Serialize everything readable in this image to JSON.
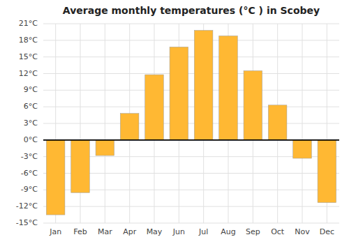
{
  "chart_data": {
    "type": "bar",
    "title": "Average monthly temperatures (°C ) in Scobey",
    "categories": [
      "Jan",
      "Feb",
      "Mar",
      "Apr",
      "May",
      "Jun",
      "Jul",
      "Aug",
      "Sep",
      "Oct",
      "Nov",
      "Dec"
    ],
    "values": [
      -13.5,
      -9.5,
      -2.8,
      4.8,
      11.8,
      16.8,
      19.8,
      18.8,
      12.5,
      6.3,
      -3.3,
      -11.3
    ],
    "color": "#FFB833",
    "ylim": [
      -15,
      21
    ],
    "yticks": [
      {
        "value": -15,
        "label": "-15°C"
      },
      {
        "value": -12,
        "label": "-12°C"
      },
      {
        "value": -9,
        "label": "-9°C"
      },
      {
        "value": -6,
        "label": "-6°C"
      },
      {
        "value": -3,
        "label": "-3°C"
      },
      {
        "value": 0,
        "label": "0°C"
      },
      {
        "value": 3,
        "label": "3°C"
      },
      {
        "value": 6,
        "label": "6°C"
      },
      {
        "value": 9,
        "label": "9°C"
      },
      {
        "value": 12,
        "label": "12°C"
      },
      {
        "value": 15,
        "label": "15°C"
      },
      {
        "value": 18,
        "label": "18°C"
      },
      {
        "value": 21,
        "label": "21°C"
      }
    ],
    "grid": true
  }
}
